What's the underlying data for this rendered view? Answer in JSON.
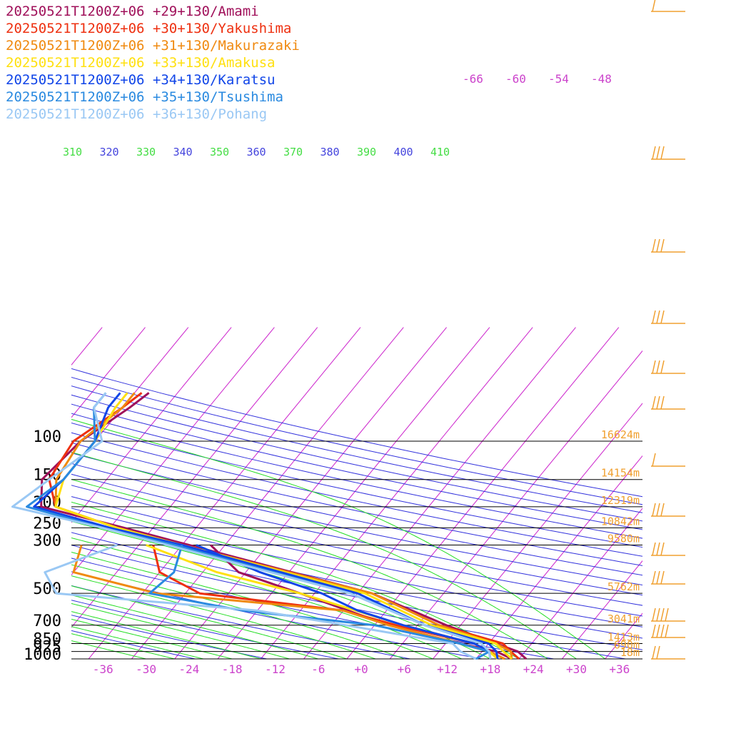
{
  "colors": {
    "background": "#ffffff",
    "isobar": "#000000",
    "isotherm": "#cc22cc",
    "dry_adiabat": "#3333dd",
    "moist_adiabat": "#22dd22",
    "height_label": "#f0a030",
    "wind_barb": "#f0a030",
    "temp_tick": "#cc44cc",
    "pressure_label": "#000000"
  },
  "chart_data": {
    "type": "line",
    "diagram": "skew-T log-P",
    "title": "",
    "xlabel": "",
    "ylabel": "",
    "pressure_levels": [
      100,
      150,
      200,
      250,
      300,
      500,
      700,
      850,
      925,
      1000
    ],
    "pressure_labels": [
      "100",
      "150",
      "200",
      "250",
      "300",
      "500",
      "700",
      "850",
      "925",
      "1000"
    ],
    "temp_ticks": [
      -36,
      -30,
      -24,
      -18,
      -12,
      -6,
      0,
      6,
      12,
      18,
      24,
      30,
      36
    ],
    "temp_tick_labels": [
      "-36",
      "-30",
      "-24",
      "-18",
      "-12",
      "-6",
      "+0",
      "+6",
      "+12",
      "+18",
      "+24",
      "+30",
      "+36"
    ],
    "xlim": [
      -42,
      38
    ],
    "ylim": [
      1000,
      100
    ],
    "height_labels": [
      {
        "p": 100,
        "text": "16624m"
      },
      {
        "p": 150,
        "text": "14154m"
      },
      {
        "p": 200,
        "text": "12319m"
      },
      {
        "p": 250,
        "text": "10842m"
      },
      {
        "p": 300,
        "text": "9580m"
      },
      {
        "p": 500,
        "text": "5762m"
      },
      {
        "p": 700,
        "text": "3041m"
      },
      {
        "p": 850,
        "text": "1413m"
      },
      {
        "p": 925,
        "text": "690m"
      },
      {
        "p": 1000,
        "text": "18m"
      }
    ],
    "theta_labels": [
      "310",
      "320",
      "330",
      "340",
      "350",
      "360",
      "370",
      "380",
      "390",
      "400",
      "410"
    ],
    "upper_isotherm_labels": [
      "-66",
      "-60",
      "-54",
      "-48"
    ],
    "series": [
      {
        "name": "20250521T1200Z+06 +29+130/Amami",
        "color": "#a0105a",
        "temperature": [
          [
            60,
            -60
          ],
          [
            70,
            -61
          ],
          [
            100,
            -64
          ],
          [
            150,
            -65
          ],
          [
            200,
            -62
          ],
          [
            250,
            -48
          ],
          [
            300,
            -37
          ],
          [
            500,
            -6
          ],
          [
            700,
            8
          ],
          [
            850,
            17
          ],
          [
            925,
            21
          ],
          [
            1000,
            23
          ]
        ],
        "dewpoint": [
          [
            300,
            -34
          ],
          [
            400,
            -27
          ],
          [
            500,
            -16
          ],
          [
            700,
            0
          ],
          [
            850,
            12
          ],
          [
            925,
            18
          ],
          [
            1000,
            21
          ]
        ]
      },
      {
        "name": "20250521T1200Z+06 +30+130/Yakushima",
        "color": "#ee3010",
        "temperature": [
          [
            60,
            -61
          ],
          [
            70,
            -62
          ],
          [
            100,
            -65
          ],
          [
            150,
            -64
          ],
          [
            200,
            -60
          ],
          [
            250,
            -49
          ],
          [
            300,
            -38
          ],
          [
            500,
            -6
          ],
          [
            700,
            7
          ],
          [
            850,
            18
          ],
          [
            925,
            20
          ],
          [
            1000,
            22
          ]
        ],
        "dewpoint": [
          [
            300,
            -42
          ],
          [
            400,
            -38
          ],
          [
            500,
            -30
          ],
          [
            600,
            -8
          ],
          [
            700,
            1
          ],
          [
            850,
            14
          ],
          [
            925,
            17
          ],
          [
            1000,
            20
          ]
        ]
      },
      {
        "name": "20250521T1200Z+06 +31+130/Makurazaki",
        "color": "#f08a10",
        "temperature": [
          [
            60,
            -62
          ],
          [
            70,
            -62
          ],
          [
            100,
            -64
          ],
          [
            150,
            -63
          ],
          [
            200,
            -60
          ],
          [
            250,
            -49
          ],
          [
            300,
            -38
          ],
          [
            500,
            -6
          ],
          [
            700,
            7
          ],
          [
            850,
            17
          ],
          [
            925,
            20
          ],
          [
            1000,
            21
          ]
        ],
        "dewpoint": [
          [
            300,
            -52
          ],
          [
            400,
            -50
          ],
          [
            500,
            -36
          ],
          [
            600,
            -8
          ],
          [
            700,
            0
          ],
          [
            850,
            12
          ],
          [
            925,
            17
          ],
          [
            1000,
            20
          ]
        ]
      },
      {
        "name": "20250521T1200Z+06 +33+130/Amakusa",
        "color": "#ffe010",
        "temperature": [
          [
            60,
            -63
          ],
          [
            70,
            -63
          ],
          [
            100,
            -62
          ],
          [
            150,
            -62
          ],
          [
            200,
            -60
          ],
          [
            250,
            -49
          ],
          [
            300,
            -38
          ],
          [
            500,
            -7
          ],
          [
            700,
            6
          ],
          [
            850,
            17
          ],
          [
            925,
            19
          ],
          [
            1000,
            21
          ]
        ],
        "dewpoint": [
          [
            300,
            -43
          ],
          [
            400,
            -30
          ],
          [
            500,
            -16
          ],
          [
            700,
            2
          ],
          [
            850,
            14
          ],
          [
            925,
            17
          ],
          [
            1000,
            19
          ]
        ]
      },
      {
        "name": "20250521T1200Z+06 +34+130/Karatsu",
        "color": "#1045e8",
        "temperature": [
          [
            60,
            -64
          ],
          [
            70,
            -64
          ],
          [
            100,
            -62
          ],
          [
            150,
            -62
          ],
          [
            200,
            -63
          ],
          [
            250,
            -50
          ],
          [
            300,
            -38
          ],
          [
            500,
            -8
          ],
          [
            700,
            5
          ],
          [
            850,
            16
          ],
          [
            925,
            18
          ],
          [
            1000,
            19
          ]
        ],
        "dewpoint": [
          [
            300,
            -36
          ],
          [
            400,
            -24
          ],
          [
            500,
            -13
          ],
          [
            600,
            -6
          ],
          [
            700,
            2
          ],
          [
            850,
            14
          ],
          [
            925,
            17
          ],
          [
            1000,
            18
          ]
        ]
      },
      {
        "name": "20250521T1200Z+06 +35+130/Tsushima",
        "color": "#2a8ae0",
        "temperature": [
          [
            60,
            -66
          ],
          [
            70,
            -66
          ],
          [
            100,
            -62
          ],
          [
            150,
            -62
          ],
          [
            200,
            -64
          ],
          [
            250,
            -51
          ],
          [
            300,
            -39
          ],
          [
            500,
            -9
          ],
          [
            700,
            5
          ],
          [
            850,
            15
          ],
          [
            925,
            17
          ],
          [
            1000,
            18
          ]
        ],
        "dewpoint": [
          [
            300,
            -38
          ],
          [
            400,
            -36
          ],
          [
            500,
            -37
          ],
          [
            600,
            -22
          ],
          [
            700,
            -2
          ],
          [
            850,
            12
          ],
          [
            925,
            17
          ],
          [
            1000,
            16
          ]
        ]
      },
      {
        "name": "20250521T1200Z+06 +36+130/Pohang",
        "color": "#9ac8f4",
        "temperature": [
          [
            60,
            -66
          ],
          [
            70,
            -66
          ],
          [
            100,
            -61
          ],
          [
            150,
            -64
          ],
          [
            200,
            -66
          ],
          [
            250,
            -51
          ],
          [
            300,
            -40
          ],
          [
            500,
            -9
          ],
          [
            700,
            5
          ],
          [
            850,
            15
          ],
          [
            925,
            17
          ],
          [
            1000,
            18
          ]
        ],
        "dewpoint": [
          [
            300,
            -47
          ],
          [
            400,
            -54
          ],
          [
            500,
            -50
          ],
          [
            600,
            -20
          ],
          [
            700,
            -6
          ],
          [
            850,
            11
          ],
          [
            925,
            13
          ],
          [
            1000,
            16
          ]
        ]
      }
    ]
  }
}
